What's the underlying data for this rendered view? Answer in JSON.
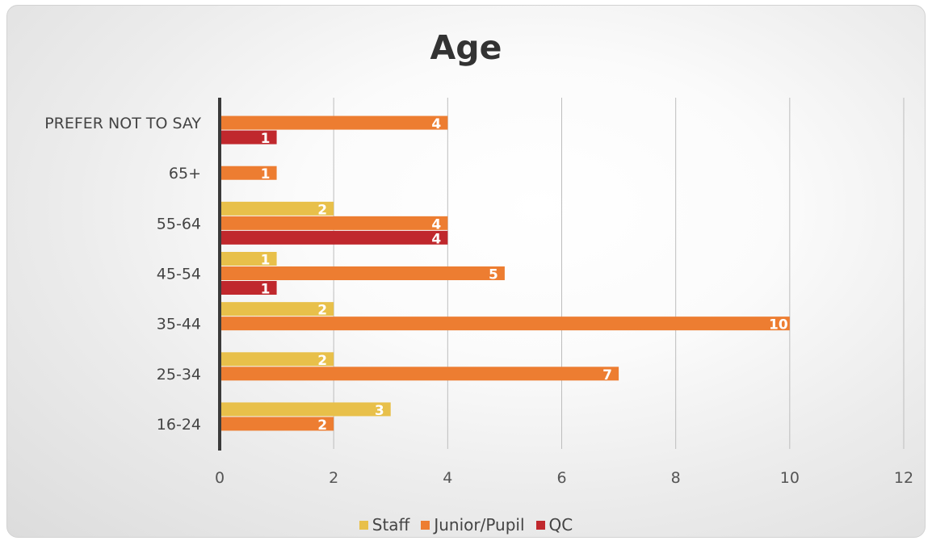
{
  "chart_data": {
    "type": "bar",
    "orientation": "horizontal",
    "title": "Age",
    "categories": [
      "16-24",
      "25-34",
      "35-44",
      "45-54",
      "55-64",
      "65+",
      "PREFER NOT TO SAY"
    ],
    "series": [
      {
        "name": "Staff",
        "color": "#e8c04a",
        "values": [
          3,
          2,
          2,
          1,
          2,
          null,
          null
        ]
      },
      {
        "name": "Junior/Pupil",
        "color": "#ed7d31",
        "values": [
          2,
          7,
          10,
          5,
          4,
          1,
          4
        ]
      },
      {
        "name": "QC",
        "color": "#c0282d",
        "values": [
          null,
          null,
          null,
          1,
          4,
          null,
          1
        ]
      }
    ],
    "xlim": [
      0,
      12
    ],
    "xticks": [
      0,
      2,
      4,
      6,
      8,
      10,
      12
    ],
    "xlabel": "",
    "ylabel": "",
    "grid": "vertical",
    "legend_position": "bottom",
    "data_labels": true
  }
}
